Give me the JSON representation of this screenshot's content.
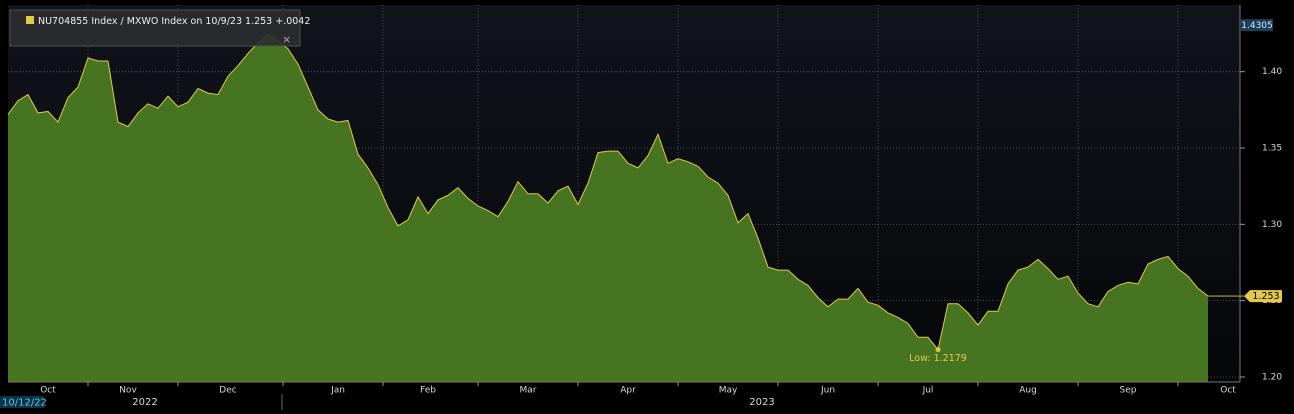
{
  "chart_data": {
    "type": "area",
    "series": [
      {
        "name": "NU704855 Index / MXWO Index",
        "color": "#e2c94a",
        "fill": "#4a7a22",
        "values": [
          1.372,
          1.381,
          1.385,
          1.373,
          1.374,
          1.367,
          1.383,
          1.39,
          1.409,
          1.407,
          1.407,
          1.367,
          1.364,
          1.373,
          1.379,
          1.376,
          1.384,
          1.377,
          1.38,
          1.389,
          1.386,
          1.385,
          1.397,
          1.404,
          1.412,
          1.419,
          1.424,
          1.42,
          1.415,
          1.405,
          1.39,
          1.375,
          1.369,
          1.367,
          1.368,
          1.346,
          1.337,
          1.326,
          1.311,
          1.299,
          1.303,
          1.318,
          1.307,
          1.316,
          1.319,
          1.324,
          1.317,
          1.312,
          1.309,
          1.305,
          1.315,
          1.328,
          1.32,
          1.32,
          1.314,
          1.322,
          1.325,
          1.313,
          1.327,
          1.347,
          1.348,
          1.348,
          1.34,
          1.337,
          1.345,
          1.359,
          1.34,
          1.343,
          1.341,
          1.338,
          1.331,
          1.327,
          1.319,
          1.301,
          1.307,
          1.291,
          1.272,
          1.27,
          1.27,
          1.264,
          1.26,
          1.252,
          1.246,
          1.251,
          1.251,
          1.258,
          1.249,
          1.247,
          1.242,
          1.239,
          1.235,
          1.226,
          1.226,
          1.2179,
          1.248,
          1.248,
          1.242,
          1.234,
          1.243,
          1.243,
          1.261,
          1.27,
          1.272,
          1.277,
          1.271,
          1.264,
          1.266,
          1.255,
          1.248,
          1.246,
          1.256,
          1.26,
          1.262,
          1.261,
          1.274,
          1.277,
          1.279,
          1.271,
          1.266,
          1.258,
          1.253,
          null,
          null,
          null
        ]
      }
    ],
    "legend_detail": "on 10/9/23 1.253 +.0042",
    "categories": [
      null,
      null,
      null,
      null,
      "Oct",
      null,
      null,
      null,
      null,
      null,
      null,
      null,
      "Nov",
      null,
      null,
      null,
      null,
      null,
      null,
      null,
      null,
      null,
      "Dec",
      null,
      null,
      null,
      null,
      null,
      null,
      null,
      null,
      null,
      null,
      "Jan",
      null,
      null,
      null,
      null,
      null,
      null,
      null,
      null,
      "Feb",
      null,
      null,
      null,
      null,
      null,
      null,
      null,
      null,
      null,
      "Mar",
      null,
      null,
      null,
      null,
      null,
      null,
      null,
      null,
      null,
      "Apr",
      null,
      null,
      null,
      null,
      null,
      null,
      null,
      null,
      null,
      "May",
      null,
      null,
      null,
      null,
      null,
      null,
      null,
      null,
      null,
      "Jun",
      null,
      null,
      null,
      null,
      null,
      null,
      null,
      null,
      null,
      "Jul",
      null,
      null,
      null,
      null,
      null,
      null,
      null,
      null,
      null,
      "Aug",
      null,
      null,
      null,
      null,
      null,
      null,
      null,
      null,
      null,
      "Sep",
      null,
      null,
      null,
      null,
      null,
      null,
      null,
      null,
      null,
      "Oct",
      null
    ],
    "years": [
      "2022",
      "2023"
    ],
    "start_date": "10/12/22",
    "ylim": [
      1.1967,
      1.4437
    ],
    "yticks": [
      {
        "value": 1.2,
        "label": "1.20"
      },
      {
        "value": 1.25,
        "label": "1.25"
      },
      {
        "value": 1.3,
        "label": "1.30"
      },
      {
        "value": 1.35,
        "label": "1.35"
      },
      {
        "value": 1.4,
        "label": "1.40"
      }
    ],
    "axis_max": 1.4305,
    "last_value": 1.253,
    "low_label": "Low: 1.2179",
    "low_index": 93,
    "grid": true
  }
}
